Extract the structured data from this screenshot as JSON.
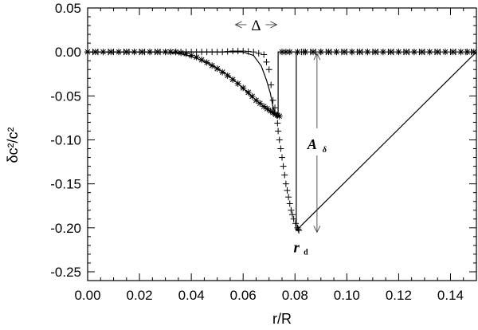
{
  "chart_data": {
    "type": "scatter",
    "xlabel": "r/R",
    "ylabel": "δc²/c²",
    "xlim": [
      0.0,
      0.15
    ],
    "ylim": [
      -0.26,
      0.05
    ],
    "xticks": [
      "0.00",
      "0.02",
      "0.04",
      "0.06",
      "0.08",
      "0.10",
      "0.12",
      "0.14"
    ],
    "xtick_values": [
      0.0,
      0.02,
      0.04,
      0.06,
      0.08,
      0.1,
      0.12,
      0.14
    ],
    "yticks": [
      "0.05",
      "0.00",
      "-0.05",
      "-0.10",
      "-0.15",
      "-0.20",
      "-0.25"
    ],
    "ytick_values": [
      0.05,
      0.0,
      -0.05,
      -0.1,
      -0.15,
      -0.2,
      -0.25
    ],
    "grid": false,
    "annotations": {
      "delta_label": "Δ",
      "delta_span": [
        0.057,
        0.073
      ],
      "delta_y": 0.031,
      "amplitude_label": "A",
      "amplitude_sub": "δ",
      "amplitude_x": 0.0805,
      "amplitude_span": [
        0.0,
        -0.205
      ],
      "rd_label": "r",
      "rd_sub": "d",
      "rd_x": 0.0815,
      "rd_y": -0.228
    },
    "series": [
      {
        "marker": "plus",
        "x": [
          0.0,
          0.004,
          0.008,
          0.012,
          0.016,
          0.02,
          0.024,
          0.028,
          0.032,
          0.036,
          0.04,
          0.044,
          0.048,
          0.052,
          0.056,
          0.06,
          0.064,
          0.068,
          0.07,
          0.0715,
          0.073,
          0.0735,
          0.0745,
          0.0755,
          0.0765,
          0.0775,
          0.0785,
          0.0795,
          0.081,
          0.0815,
          0.0825,
          0.084,
          0.088,
          0.092,
          0.096,
          0.1,
          0.104,
          0.108,
          0.112,
          0.116,
          0.12,
          0.124,
          0.128,
          0.132,
          0.136,
          0.14,
          0.144,
          0.148
        ],
        "y": [
          0.0,
          0.0,
          0.0,
          0.0,
          0.0,
          0.0,
          0.0,
          0.0,
          0.0,
          0.0,
          0.0,
          0.0,
          0.0,
          0.0,
          0.001,
          0.001,
          0.0,
          -0.003,
          -0.02,
          -0.055,
          -0.072,
          -0.09,
          -0.11,
          -0.13,
          -0.15,
          -0.165,
          -0.18,
          -0.19,
          -0.2,
          -0.203,
          0.0,
          0.0,
          0.0,
          0.0,
          0.0,
          0.0,
          0.0,
          0.0,
          0.0,
          0.0,
          0.0,
          0.0,
          0.0,
          0.0,
          0.0,
          0.0,
          0.0,
          0.0
        ]
      },
      {
        "marker": "star",
        "x": [
          0.0,
          0.006,
          0.012,
          0.018,
          0.024,
          0.03,
          0.034,
          0.038,
          0.042,
          0.046,
          0.05,
          0.054,
          0.058,
          0.062,
          0.065,
          0.068,
          0.0705,
          0.0725,
          0.074,
          0.075,
          0.078,
          0.084,
          0.09,
          0.096,
          0.102,
          0.108,
          0.114,
          0.12,
          0.126,
          0.132,
          0.138,
          0.144,
          0.149
        ],
        "y": [
          0.0,
          0.0,
          0.0,
          0.0,
          0.0,
          0.0,
          0.0,
          -0.002,
          -0.006,
          -0.012,
          -0.019,
          -0.027,
          -0.036,
          -0.046,
          -0.055,
          -0.062,
          -0.067,
          -0.071,
          -0.073,
          0.0,
          0.0,
          0.0,
          0.0,
          0.0,
          0.0,
          0.0,
          0.0,
          0.0,
          0.0,
          0.0,
          0.0,
          0.0,
          0.0
        ]
      },
      {
        "marker": "line",
        "x": [
          0.0,
          0.03,
          0.036,
          0.042,
          0.048,
          0.054,
          0.058,
          0.062,
          0.065,
          0.068,
          0.07,
          0.0725,
          0.0735,
          0.0735,
          0.0805,
          0.0805,
          0.15
        ],
        "y": [
          0.0,
          0.0,
          -0.002,
          -0.007,
          -0.015,
          -0.026,
          -0.036,
          -0.047,
          -0.055,
          -0.062,
          -0.067,
          -0.072,
          -0.073,
          0.0,
          0.0,
          -0.203,
          0.0
        ]
      },
      {
        "marker": "line",
        "x": [
          0.0,
          0.054,
          0.06,
          0.064,
          0.067,
          0.069,
          0.0705,
          0.0715,
          0.0725
        ],
        "y": [
          0.0,
          0.0,
          0.0,
          -0.004,
          -0.016,
          -0.032,
          -0.047,
          -0.062,
          -0.072
        ]
      }
    ]
  }
}
